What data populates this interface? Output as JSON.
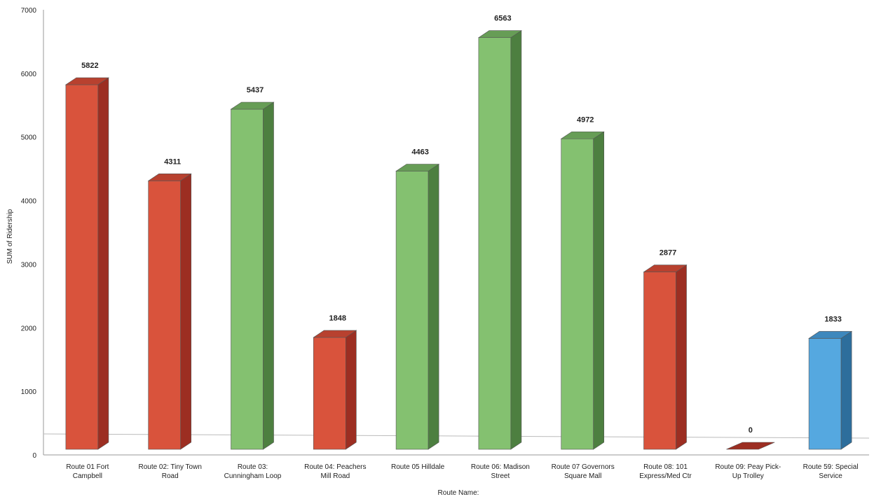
{
  "chart_data": {
    "type": "bar",
    "title": "",
    "xlabel": "Route Name:",
    "ylabel": "SUM of Ridership",
    "ylim": [
      0,
      7000
    ],
    "yticks": [
      "0",
      "1000",
      "2000",
      "3000",
      "4000",
      "5000",
      "6000",
      "7000"
    ],
    "grid": false,
    "style": "3d",
    "categories": [
      [
        "Route 01  Fort",
        "Campbell"
      ],
      [
        "Route 02: Tiny Town",
        "Road"
      ],
      [
        "Route 03:",
        "Cunningham Loop"
      ],
      [
        "Route 04: Peachers",
        "Mill Road"
      ],
      [
        "Route 05  Hilldale"
      ],
      [
        "Route 06: Madison",
        "Street"
      ],
      [
        "Route 07  Governors",
        "Square Mall"
      ],
      [
        "Route 08: 101",
        "Express/Med Ctr"
      ],
      [
        "Route 09: Peay Pick-",
        "Up Trolley"
      ],
      [
        "Route 59: Special",
        "Service"
      ]
    ],
    "values": [
      5822,
      4311,
      5437,
      1848,
      4463,
      6563,
      4972,
      2877,
      0,
      1833
    ],
    "value_labels": [
      "5822",
      "4311",
      "5437",
      "1848",
      "4463",
      "6563",
      "4972",
      "2877",
      "0",
      "1833"
    ],
    "bar_colors": [
      "red",
      "red",
      "green",
      "red",
      "green",
      "green",
      "green",
      "red",
      "red",
      "blue"
    ]
  },
  "palette": {
    "red": {
      "front": "#d9533c",
      "side": "#9c2e22",
      "top": "#b8412f"
    },
    "green": {
      "front": "#84c170",
      "side": "#4d7f40",
      "top": "#679d56"
    },
    "blue": {
      "front": "#55a8e0",
      "side": "#2d6e9c",
      "top": "#3e88bd"
    }
  }
}
